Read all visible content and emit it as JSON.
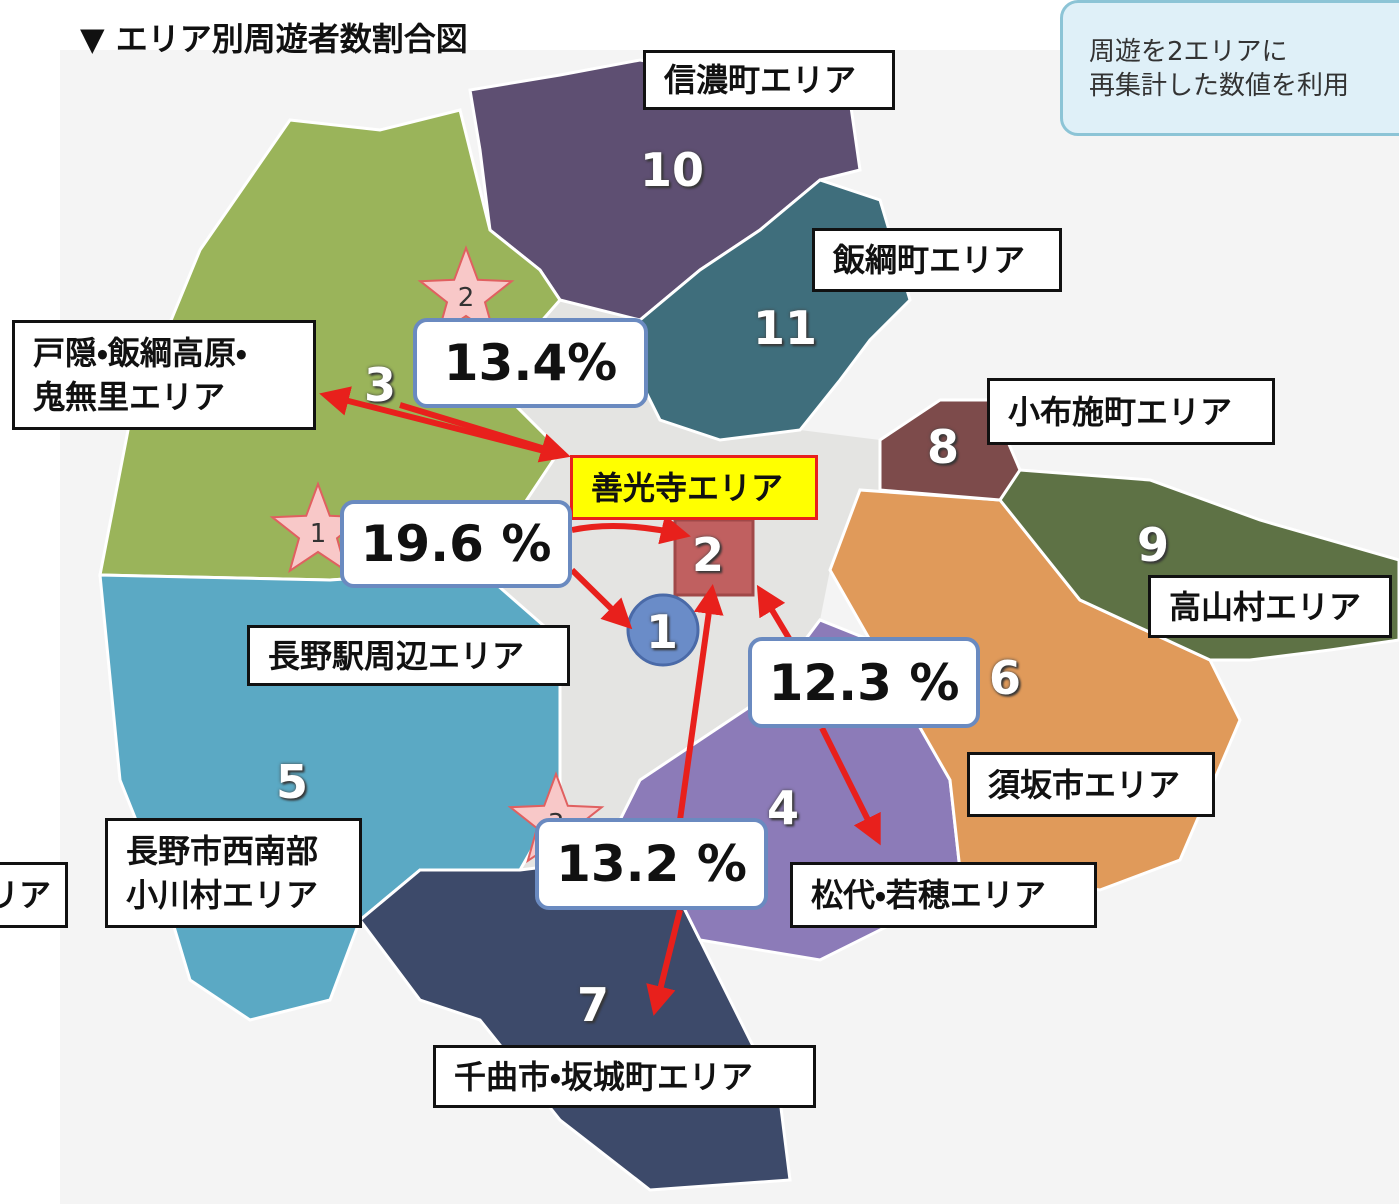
{
  "title": "▼ エリア別周遊者数割合図",
  "note": {
    "lines": [
      "周遊を2エリアに",
      "再集計した数値を利用"
    ]
  },
  "areas": [
    {
      "number": 10,
      "label": [
        "信濃町エリア"
      ]
    },
    {
      "number": 11,
      "label": [
        "飯綱町エリア"
      ]
    },
    {
      "number": 3,
      "label": [
        "戸隠・飯綱高原・",
        "鬼無里エリア"
      ]
    },
    {
      "number": 8,
      "label": [
        "小布施町エリア"
      ]
    },
    {
      "number": 2,
      "label": [
        "善光寺エリア"
      ]
    },
    {
      "number": 9,
      "label": [
        "高山村エリア"
      ]
    },
    {
      "number": 1,
      "label": [
        "長野駅周辺エリア"
      ]
    },
    {
      "number": 6,
      "label": [
        "須坂市エリア"
      ]
    },
    {
      "number": 5,
      "label": [
        "長野市西南部",
        "小川村エリア"
      ]
    },
    {
      "number": 4,
      "label": [
        "松代・若穂エリア"
      ]
    },
    {
      "number": 7,
      "label": [
        "千曲市・坂城町エリア"
      ]
    }
  ],
  "partial_label": "リア",
  "ratios": [
    {
      "rank": 1,
      "value": "19.6 %"
    },
    {
      "rank": 2,
      "value": "13.4%"
    },
    {
      "rank": 3,
      "value": "13.2 %"
    },
    {
      "rank": null,
      "value": "12.3 %"
    }
  ]
}
